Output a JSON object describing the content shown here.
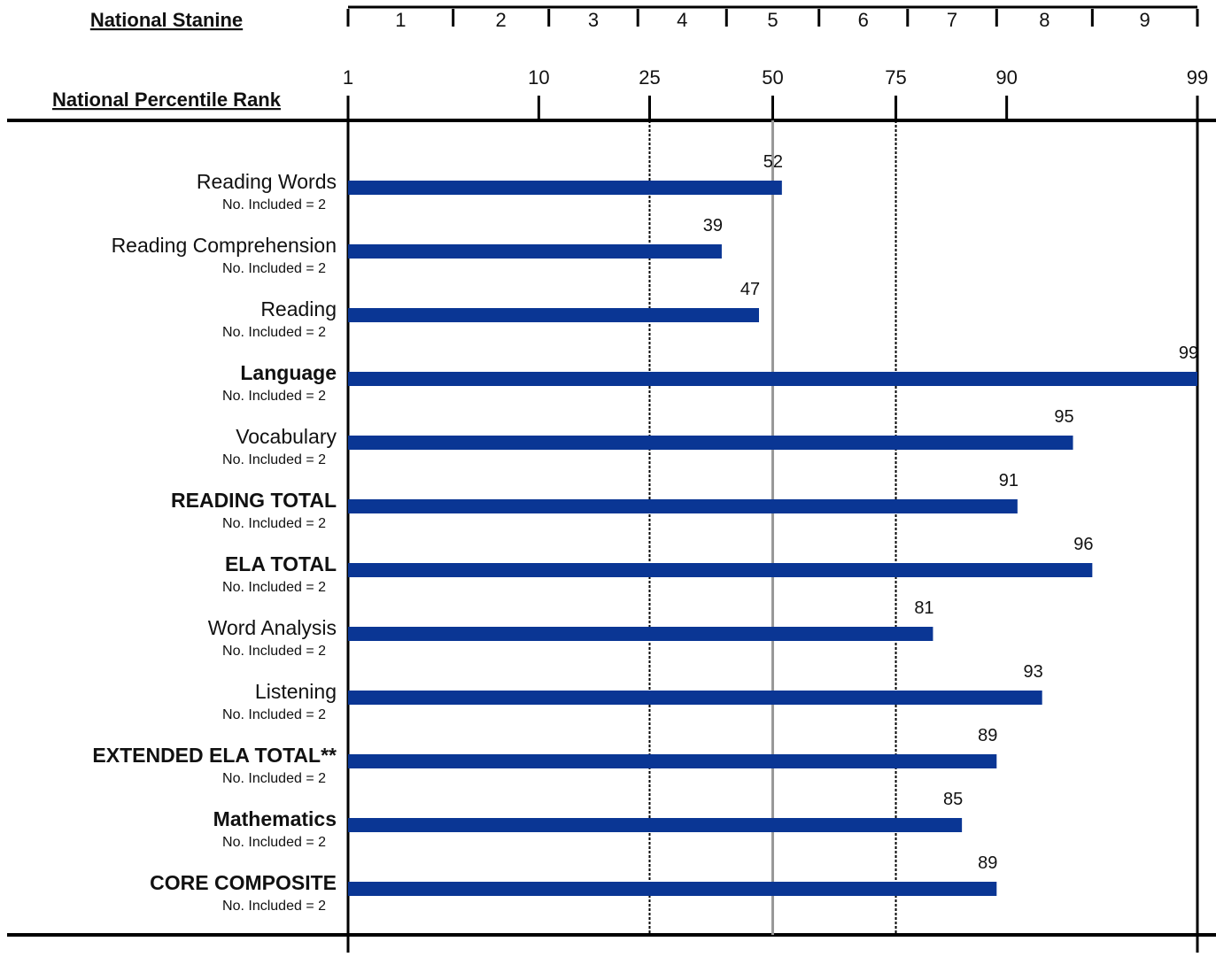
{
  "chart_data": {
    "type": "bar",
    "orientation": "horizontal",
    "stanine_title": "National Stanine",
    "stanines": [
      "1",
      "2",
      "3",
      "4",
      "5",
      "6",
      "7",
      "8",
      "9"
    ],
    "stanine_boundaries_pr": [
      4,
      11,
      23,
      40,
      60,
      77,
      89,
      96
    ],
    "xlabel": "National Percentile Rank",
    "xticks": [
      1,
      10,
      25,
      50,
      75,
      90,
      99
    ],
    "xlim": [
      1,
      99
    ],
    "reference_lines": [
      {
        "value": 25,
        "style": "dashed"
      },
      {
        "value": 50,
        "style": "solid-gray"
      },
      {
        "value": 75,
        "style": "dashed"
      }
    ],
    "bar_color": "#0a3694",
    "categories": [
      {
        "label": "Reading Words",
        "sub": "No. Included = 2",
        "bold": false,
        "value": 52
      },
      {
        "label": "Reading Comprehension",
        "sub": "No. Included = 2",
        "bold": false,
        "value": 39
      },
      {
        "label": "Reading",
        "sub": "No. Included = 2",
        "bold": false,
        "value": 47
      },
      {
        "label": "Language",
        "sub": "No. Included = 2",
        "bold": true,
        "value": 99
      },
      {
        "label": "Vocabulary",
        "sub": "No. Included = 2",
        "bold": false,
        "value": 95
      },
      {
        "label": "READING TOTAL",
        "sub": "No. Included = 2",
        "bold": true,
        "value": 91
      },
      {
        "label": "ELA TOTAL",
        "sub": "No. Included = 2",
        "bold": true,
        "value": 96
      },
      {
        "label": "Word Analysis",
        "sub": "No. Included = 2",
        "bold": false,
        "value": 81
      },
      {
        "label": "Listening",
        "sub": "No. Included = 2",
        "bold": false,
        "value": 93
      },
      {
        "label": "EXTENDED ELA TOTAL**",
        "sub": "No. Included = 2",
        "bold": true,
        "value": 89
      },
      {
        "label": "Mathematics",
        "sub": "No. Included = 2",
        "bold": true,
        "value": 85
      },
      {
        "label": "CORE COMPOSITE",
        "sub": "No. Included = 2",
        "bold": true,
        "value": 89
      }
    ]
  }
}
